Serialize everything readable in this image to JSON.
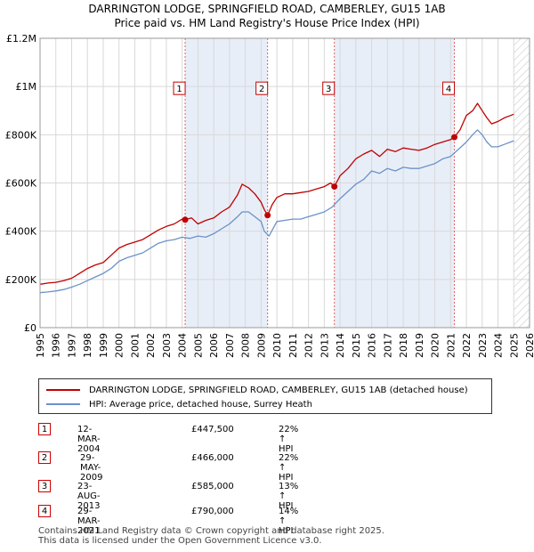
{
  "title_line1": "DARRINGTON LODGE, SPRINGFIELD ROAD, CAMBERLEY, GU15 1AB",
  "title_line2": "Price paid vs. HM Land Registry's House Price Index (HPI)",
  "colors": {
    "red": "#c00000",
    "blue": "#6a93c8",
    "shade": "#e8eef8",
    "grid": "#d8d8d8"
  },
  "chart_data": {
    "type": "line",
    "xlim": [
      1995,
      2026
    ],
    "ylim": [
      0,
      1200000
    ],
    "y_ticks": [
      {
        "value": 0,
        "label": "£0"
      },
      {
        "value": 200000,
        "label": "£200K"
      },
      {
        "value": 400000,
        "label": "£400K"
      },
      {
        "value": 600000,
        "label": "£600K"
      },
      {
        "value": 800000,
        "label": "£800K"
      },
      {
        "value": 1000000,
        "label": "£1M"
      },
      {
        "value": 1200000,
        "label": "£1.2M"
      }
    ],
    "x_ticks": [
      "1995",
      "1996",
      "1997",
      "1998",
      "1999",
      "2000",
      "2001",
      "2002",
      "2003",
      "2004",
      "2005",
      "2006",
      "2007",
      "2008",
      "2009",
      "2010",
      "2011",
      "2012",
      "2013",
      "2014",
      "2015",
      "2016",
      "2017",
      "2018",
      "2019",
      "2020",
      "2021",
      "2022",
      "2023",
      "2024",
      "2025",
      "2026"
    ],
    "shaded_ranges": [
      [
        2004.19,
        2009.41
      ],
      [
        2013.64,
        2021.24
      ]
    ],
    "hatched_from": 2025.0,
    "series": [
      {
        "name": "DARRINGTON LODGE, SPRINGFIELD ROAD, CAMBERLEY, GU15 1AB (detached house)",
        "color": "#c00000",
        "x": [
          1995.0,
          1995.5,
          1996.0,
          1996.5,
          1997.0,
          1997.5,
          1998.0,
          1998.5,
          1999.0,
          1999.5,
          2000.0,
          2000.5,
          2001.0,
          2001.5,
          2002.0,
          2002.5,
          2003.0,
          2003.5,
          2004.0,
          2004.19,
          2004.6,
          2005.0,
          2005.5,
          2006.0,
          2006.5,
          2007.0,
          2007.5,
          2007.8,
          2008.2,
          2008.6,
          2009.0,
          2009.2,
          2009.41,
          2009.7,
          2010.0,
          2010.5,
          2011.0,
          2011.5,
          2012.0,
          2012.5,
          2013.0,
          2013.4,
          2013.64,
          2014.0,
          2014.5,
          2015.0,
          2015.5,
          2016.0,
          2016.5,
          2017.0,
          2017.5,
          2018.0,
          2018.5,
          2019.0,
          2019.5,
          2020.0,
          2020.5,
          2021.0,
          2021.24,
          2021.6,
          2022.0,
          2022.4,
          2022.7,
          2023.0,
          2023.3,
          2023.6,
          2024.0,
          2024.4,
          2024.8,
          2025.0
        ],
        "y": [
          180000,
          185000,
          188000,
          195000,
          205000,
          225000,
          245000,
          260000,
          270000,
          300000,
          330000,
          345000,
          355000,
          365000,
          385000,
          405000,
          420000,
          430000,
          450000,
          447500,
          455000,
          430000,
          445000,
          455000,
          480000,
          500000,
          550000,
          595000,
          580000,
          555000,
          520000,
          490000,
          466000,
          510000,
          540000,
          555000,
          555000,
          560000,
          565000,
          575000,
          585000,
          600000,
          585000,
          630000,
          660000,
          700000,
          720000,
          735000,
          710000,
          740000,
          730000,
          745000,
          740000,
          735000,
          745000,
          760000,
          770000,
          780000,
          790000,
          820000,
          880000,
          900000,
          930000,
          900000,
          870000,
          845000,
          855000,
          870000,
          880000,
          885000
        ]
      },
      {
        "name": "HPI: Average price, detached house, Surrey Heath",
        "color": "#6a93c8",
        "x": [
          1995.0,
          1995.5,
          1996.0,
          1996.5,
          1997.0,
          1997.5,
          1998.0,
          1998.5,
          1999.0,
          1999.5,
          2000.0,
          2000.5,
          2001.0,
          2001.5,
          2002.0,
          2002.5,
          2003.0,
          2003.5,
          2004.0,
          2004.5,
          2005.0,
          2005.5,
          2006.0,
          2006.5,
          2007.0,
          2007.5,
          2007.8,
          2008.2,
          2008.6,
          2009.0,
          2009.2,
          2009.5,
          2010.0,
          2010.5,
          2011.0,
          2011.5,
          2012.0,
          2012.5,
          2013.0,
          2013.5,
          2014.0,
          2014.5,
          2015.0,
          2015.5,
          2016.0,
          2016.5,
          2017.0,
          2017.5,
          2018.0,
          2018.5,
          2019.0,
          2019.5,
          2020.0,
          2020.5,
          2021.0,
          2021.5,
          2022.0,
          2022.4,
          2022.7,
          2023.0,
          2023.3,
          2023.6,
          2024.0,
          2024.4,
          2024.8,
          2025.0
        ],
        "y": [
          145000,
          148000,
          152000,
          158000,
          168000,
          180000,
          195000,
          210000,
          225000,
          245000,
          275000,
          290000,
          300000,
          310000,
          330000,
          350000,
          360000,
          365000,
          375000,
          370000,
          380000,
          375000,
          390000,
          410000,
          430000,
          460000,
          480000,
          480000,
          460000,
          440000,
          400000,
          380000,
          440000,
          445000,
          450000,
          450000,
          460000,
          470000,
          480000,
          500000,
          535000,
          565000,
          595000,
          615000,
          650000,
          640000,
          660000,
          650000,
          665000,
          660000,
          660000,
          670000,
          680000,
          700000,
          710000,
          740000,
          770000,
          800000,
          820000,
          800000,
          770000,
          750000,
          750000,
          760000,
          770000,
          775000
        ]
      }
    ],
    "markers": [
      {
        "n": "1",
        "x": 2004.19,
        "y": 447500
      },
      {
        "n": "2",
        "x": 2009.41,
        "y": 466000
      },
      {
        "n": "3",
        "x": 2013.64,
        "y": 585000
      },
      {
        "n": "4",
        "x": 2021.24,
        "y": 790000
      }
    ]
  },
  "legend": [
    {
      "label": "DARRINGTON LODGE, SPRINGFIELD ROAD, CAMBERLEY, GU15 1AB (detached house)"
    },
    {
      "label": "HPI: Average price, detached house, Surrey Heath"
    }
  ],
  "transactions": [
    {
      "n": "1",
      "date": "12-MAR-2004",
      "price": "£447,500",
      "hpi": "22% ↑ HPI"
    },
    {
      "n": "2",
      "date": "29-MAY-2009",
      "price": "£466,000",
      "hpi": "22% ↑ HPI"
    },
    {
      "n": "3",
      "date": "23-AUG-2013",
      "price": "£585,000",
      "hpi": "13% ↑ HPI"
    },
    {
      "n": "4",
      "date": "29-MAR-2021",
      "price": "£790,000",
      "hpi": "14% ↑ HPI"
    }
  ],
  "footer_line1": "Contains HM Land Registry data © Crown copyright and database right 2025.",
  "footer_line2": "This data is licensed under the Open Government Licence v3.0."
}
